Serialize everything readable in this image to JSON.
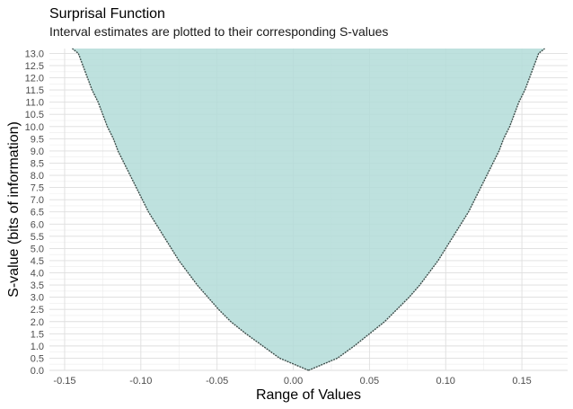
{
  "chart_data": {
    "type": "area",
    "title": "Surprisal Function",
    "subtitle": "Interval estimates are plotted to their corresponding S-values",
    "xlabel": "Range of Values",
    "ylabel": "S-value (bits of information)",
    "xlim": [
      -0.16,
      0.18
    ],
    "ylim": [
      0,
      13.2
    ],
    "x_ticks": [
      -0.15,
      -0.1,
      -0.05,
      0.0,
      0.05,
      0.1,
      0.15
    ],
    "x_tick_labels": [
      "-0.15",
      "-0.10",
      "-0.05",
      "0.00",
      "0.05",
      "0.10",
      "0.15"
    ],
    "y_ticks": [
      0,
      0.5,
      1,
      1.5,
      2,
      2.5,
      3,
      3.5,
      4,
      4.5,
      5,
      5.5,
      6,
      6.5,
      7,
      7.5,
      8,
      8.5,
      9,
      9.5,
      10,
      10.5,
      11,
      11.5,
      12,
      12.5,
      13
    ],
    "y_tick_labels": [
      "0.0",
      "0.5",
      "1.0",
      "1.5",
      "2.0",
      "2.5",
      "3.0",
      "3.5",
      "4.0",
      "4.5",
      "5.0",
      "5.5",
      "6.0",
      "6.5",
      "7.0",
      "7.5",
      "8.0",
      "8.5",
      "9.0",
      "9.5",
      "10.0",
      "10.5",
      "11.0",
      "11.5",
      "12.0",
      "12.5",
      "13.0"
    ],
    "series": [
      {
        "fill_color": "#b3dcd8",
        "line_color": "#3e4f4c",
        "lower": [
          [
            0.01,
            0.0
          ],
          [
            -0.009,
            0.5
          ],
          [
            -0.02,
            1.0
          ],
          [
            -0.031,
            1.5
          ],
          [
            -0.041,
            2.0
          ],
          [
            -0.049,
            2.5
          ],
          [
            -0.056,
            3.0
          ],
          [
            -0.063,
            3.5
          ],
          [
            -0.069,
            4.0
          ],
          [
            -0.075,
            4.5
          ],
          [
            -0.08,
            5.0
          ],
          [
            -0.085,
            5.5
          ],
          [
            -0.09,
            6.0
          ],
          [
            -0.095,
            6.5
          ],
          [
            -0.099,
            7.0
          ],
          [
            -0.103,
            7.5
          ],
          [
            -0.107,
            8.0
          ],
          [
            -0.111,
            8.5
          ],
          [
            -0.115,
            9.0
          ],
          [
            -0.118,
            9.5
          ],
          [
            -0.122,
            10.0
          ],
          [
            -0.125,
            10.5
          ],
          [
            -0.128,
            11.0
          ],
          [
            -0.132,
            11.5
          ],
          [
            -0.135,
            12.0
          ],
          [
            -0.138,
            12.5
          ],
          [
            -0.141,
            13.0
          ],
          [
            -0.145,
            13.2
          ]
        ],
        "upper": [
          [
            0.01,
            0.0
          ],
          [
            0.029,
            0.5
          ],
          [
            0.04,
            1.0
          ],
          [
            0.05,
            1.5
          ],
          [
            0.06,
            2.0
          ],
          [
            0.068,
            2.5
          ],
          [
            0.076,
            3.0
          ],
          [
            0.083,
            3.5
          ],
          [
            0.089,
            4.0
          ],
          [
            0.095,
            4.5
          ],
          [
            0.1,
            5.0
          ],
          [
            0.105,
            5.5
          ],
          [
            0.11,
            6.0
          ],
          [
            0.115,
            6.5
          ],
          [
            0.119,
            7.0
          ],
          [
            0.123,
            7.5
          ],
          [
            0.127,
            8.0
          ],
          [
            0.131,
            8.5
          ],
          [
            0.135,
            9.0
          ],
          [
            0.138,
            9.5
          ],
          [
            0.142,
            10.0
          ],
          [
            0.145,
            10.5
          ],
          [
            0.148,
            11.0
          ],
          [
            0.152,
            11.5
          ],
          [
            0.155,
            12.0
          ],
          [
            0.158,
            12.5
          ],
          [
            0.161,
            13.0
          ],
          [
            0.165,
            13.2
          ]
        ]
      }
    ],
    "grid": true,
    "legend": "none"
  }
}
